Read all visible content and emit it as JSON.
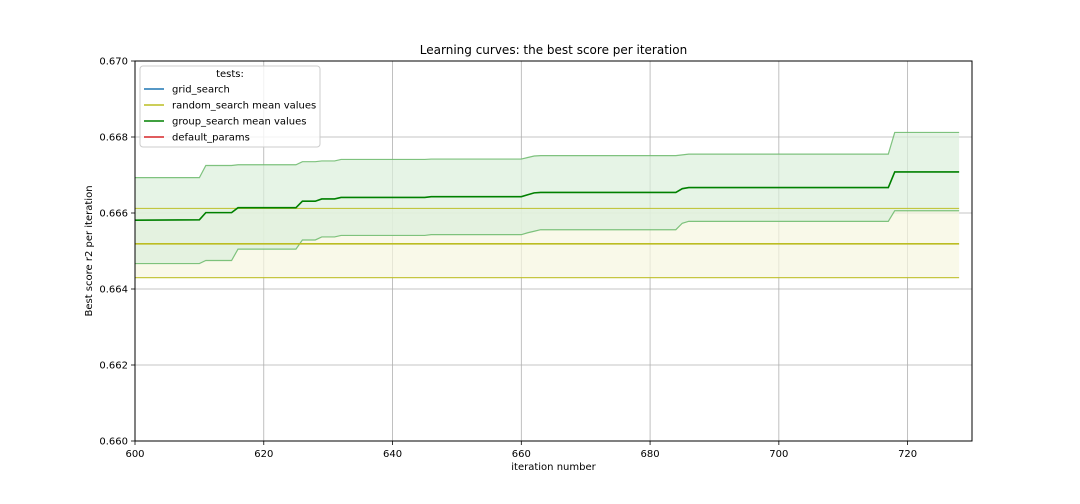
{
  "chart_data": {
    "type": "line",
    "title": "Learning curves: the best score per iteration",
    "xlabel": "iteration number",
    "ylabel": "Best score r2 per iteration",
    "xlim": [
      600,
      730
    ],
    "ylim": [
      0.66,
      0.67
    ],
    "xticks": [
      600,
      620,
      640,
      660,
      680,
      700,
      720
    ],
    "yticks": [
      0.66,
      0.662,
      0.664,
      0.666,
      0.668,
      0.67
    ],
    "xtick_labels": [
      "600",
      "620",
      "640",
      "660",
      "680",
      "700",
      "720"
    ],
    "ytick_labels": [
      "0.660",
      "0.662",
      "0.664",
      "0.666",
      "0.668",
      "0.670"
    ],
    "grid": true,
    "legend": {
      "title": "tests:",
      "position": "top-left",
      "entries": [
        {
          "label": "grid_search",
          "color": "#1f77b4"
        },
        {
          "label": "random_search mean values",
          "color": "#bcbd22"
        },
        {
          "label": "group_search mean values",
          "color": "#008000"
        },
        {
          "label": "default_params",
          "color": "#d62728"
        }
      ]
    },
    "series": [
      {
        "name": "random_search mean values",
        "color": "#bcbd22",
        "band_fill": "#f7f7e0",
        "x": [
          600,
          728
        ],
        "mean": [
          0.66519,
          0.66519
        ],
        "upper": [
          0.66612,
          0.66612
        ],
        "lower": [
          0.6643,
          0.6643
        ]
      },
      {
        "name": "group_search mean values",
        "color": "#008000",
        "band_color": "#6ab86a",
        "band_fill": "#dcefdc",
        "x": [
          600,
          610,
          611,
          615,
          616,
          625,
          626,
          628,
          629,
          631,
          632,
          645,
          646,
          660,
          661,
          662,
          663,
          684,
          685,
          686,
          717,
          718,
          728
        ],
        "mean": [
          0.66581,
          0.66582,
          0.66601,
          0.66601,
          0.66614,
          0.66614,
          0.66631,
          0.66631,
          0.66637,
          0.66637,
          0.66641,
          0.66641,
          0.66643,
          0.66643,
          0.66648,
          0.66653,
          0.66654,
          0.66654,
          0.66664,
          0.66667,
          0.66667,
          0.66708,
          0.66708
        ],
        "upper": [
          0.66693,
          0.66693,
          0.66725,
          0.66725,
          0.66727,
          0.66727,
          0.66735,
          0.66735,
          0.66737,
          0.66737,
          0.66741,
          0.66741,
          0.66742,
          0.66742,
          0.66746,
          0.6675,
          0.66751,
          0.66751,
          0.66753,
          0.66755,
          0.66755,
          0.66812,
          0.66812
        ],
        "lower": [
          0.66467,
          0.66467,
          0.66475,
          0.66475,
          0.66505,
          0.66505,
          0.66529,
          0.66529,
          0.66537,
          0.66537,
          0.66541,
          0.66541,
          0.66543,
          0.66543,
          0.66548,
          0.66552,
          0.66556,
          0.66556,
          0.66573,
          0.66578,
          0.66578,
          0.66606,
          0.66606
        ]
      }
    ]
  }
}
